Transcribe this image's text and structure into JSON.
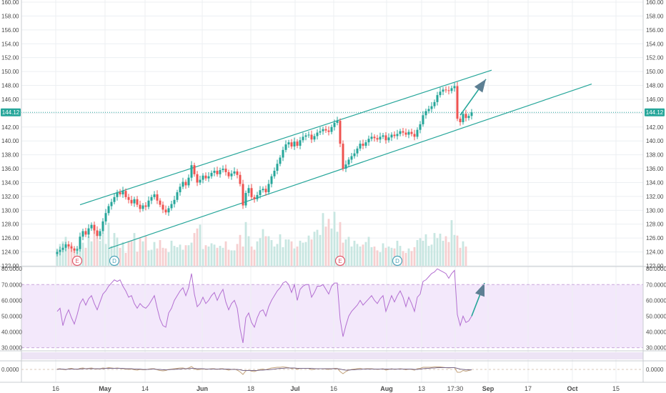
{
  "chart_data": {
    "type": "candlestick",
    "x_tick_labels": [
      "16",
      "May",
      "14",
      "Jun",
      "18",
      "Jul",
      "16",
      "Aug",
      "13",
      "17:30",
      "Sep",
      "17",
      "Oct",
      "15"
    ],
    "price_axis": {
      "ticks": [
        "160.00",
        "158.00",
        "156.00",
        "154.00",
        "152.00",
        "150.00",
        "148.00",
        "146.00",
        "144.00",
        "142.00",
        "140.00",
        "138.00",
        "136.00",
        "134.00",
        "132.00",
        "130.00",
        "128.00",
        "126.00",
        "124.00",
        "122.00"
      ],
      "range": [
        122,
        160
      ],
      "last_price": "144.12",
      "last_price_value": 144.12
    },
    "colors": {
      "up": "#26a69a",
      "down": "#ef5350",
      "channel": "#26a69a",
      "arrow": "#5d7f93",
      "rsi_line": "#b36fd1",
      "rsi_band": "#f3e8fb"
    },
    "events": [
      {
        "label": "E",
        "type": "earnings",
        "day": 7
      },
      {
        "label": "D",
        "type": "dividend",
        "day": 20
      },
      {
        "label": "E",
        "type": "earnings",
        "day": 99
      },
      {
        "label": "D",
        "type": "dividend",
        "day": 119
      }
    ],
    "channel": {
      "upper": [
        [
          8,
          130.8
        ],
        [
          152,
          150.2
        ]
      ],
      "lower": [
        [
          18,
          124.5
        ],
        [
          187,
          148.2
        ]
      ]
    },
    "arrow": {
      "from": [
        141,
        143.7
      ],
      "to": [
        150,
        148.9
      ]
    },
    "price_series": [
      124.0,
      124.3,
      124.6,
      125.1,
      124.8,
      124.5,
      124.2,
      124.4,
      126.2,
      127.0,
      126.5,
      127.4,
      127.9,
      127.1,
      126.3,
      127.0,
      128.4,
      129.6,
      130.6,
      131.2,
      131.9,
      132.6,
      132.3,
      132.8,
      131.9,
      131.5,
      131.0,
      131.6,
      130.8,
      130.2,
      130.7,
      130.5,
      131.4,
      131.9,
      132.3,
      131.4,
      130.8,
      130.1,
      129.7,
      130.3,
      130.9,
      131.5,
      132.6,
      133.4,
      134.1,
      133.6,
      134.7,
      136.5,
      135.2,
      134.0,
      134.4,
      135.0,
      134.6,
      134.9,
      135.4,
      135.7,
      135.2,
      135.8,
      136.0,
      135.5,
      134.9,
      135.3,
      135.6,
      135.1,
      133.8,
      130.7,
      132.5,
      133.2,
      131.9,
      131.6,
      132.2,
      132.9,
      133.1,
      132.6,
      133.8,
      134.9,
      135.7,
      136.7,
      137.6,
      138.7,
      139.5,
      139.8,
      139.2,
      139.9,
      139.3,
      140.1,
      140.6,
      140.8,
      140.9,
      140.2,
      140.7,
      141.2,
      141.4,
      141.7,
      141.5,
      141.3,
      142.0,
      142.6,
      142.9,
      139.6,
      136.0,
      136.6,
      137.3,
      137.8,
      138.2,
      138.9,
      139.6,
      139.3,
      139.8,
      140.3,
      140.6,
      140.4,
      140.2,
      140.6,
      140.8,
      140.1,
      140.5,
      140.9,
      140.7,
      141.0,
      141.4,
      141.2,
      140.9,
      141.3,
      141.0,
      140.6,
      141.6,
      142.4,
      143.7,
      144.3,
      144.6,
      145.0,
      145.6,
      146.6,
      147.1,
      147.4,
      147.3,
      147.2,
      147.6,
      147.9,
      143.2,
      142.7,
      143.9,
      143.3,
      143.6,
      144.12
    ],
    "volume": {
      "levels": [
        0.27,
        0.34,
        0.38,
        0.45,
        0.32,
        0.33,
        0.26,
        0.28,
        0.25,
        0.36,
        0.28,
        0.46,
        0.38,
        0.56,
        0.43,
        0.39,
        0.51,
        0.34,
        0.67,
        0.31,
        0.51,
        0.44,
        0.28,
        0.37,
        0.2,
        0.38,
        0.39,
        0.51,
        0.22,
        0.44,
        0.38,
        0.46,
        0.24,
        0.25,
        0.37,
        0.27,
        0.4,
        0.28,
        0.27,
        0.21,
        0.39,
        0.31,
        0.29,
        0.33,
        0.25,
        0.32,
        0.32,
        0.36,
        0.51,
        0.58,
        0.64,
        0.26,
        0.32,
        0.3,
        0.35,
        0.33,
        0.28,
        0.31,
        0.28,
        0.38,
        0.25,
        0.24,
        0.24,
        0.34,
        0.48,
        0.3,
        0.68,
        0.46,
        0.3,
        0.25,
        0.38,
        0.43,
        0.57,
        0.46,
        0.46,
        0.4,
        0.3,
        0.34,
        0.49,
        0.29,
        0.41,
        0.41,
        0.38,
        0.27,
        0.3,
        0.39,
        0.36,
        0.37,
        0.47,
        0.41,
        0.53,
        0.56,
        0.48,
        0.82,
        0.61,
        0.73,
        0.58,
        0.84,
        0.53,
        0.68,
        0.36,
        0.41,
        0.45,
        0.3,
        0.39,
        0.34,
        0.3,
        0.33,
        0.37,
        0.45,
        0.29,
        0.3,
        0.24,
        0.21,
        0.35,
        0.28,
        0.3,
        0.28,
        0.27,
        0.39,
        0.31,
        0.23,
        0.2,
        0.27,
        0.23,
        0.29,
        0.4,
        0.43,
        0.39,
        0.49,
        0.31,
        0.33,
        0.51,
        0.43,
        0.5,
        0.39,
        0.46,
        0.37,
        0.71,
        0.48,
        0.47,
        0.28,
        0.38,
        0.3
      ]
    },
    "rsi": {
      "ticks": [
        "80.0000",
        "70.0000",
        "60.0000",
        "50.0000",
        "40.0000",
        "30.0000"
      ],
      "range": [
        28,
        81
      ],
      "band": [
        30,
        70
      ],
      "series": [
        53,
        55,
        44,
        50,
        54,
        49,
        45,
        51,
        58,
        61,
        57,
        61,
        63,
        58,
        54,
        59,
        64,
        66,
        69,
        71,
        73,
        72,
        73,
        69,
        66,
        62,
        63,
        58,
        55,
        58,
        56,
        55,
        57,
        60,
        63,
        55,
        48,
        44,
        43,
        52,
        55,
        60,
        63,
        66,
        68,
        63,
        68,
        77,
        64,
        56,
        58,
        62,
        58,
        60,
        63,
        65,
        60,
        64,
        67,
        59,
        54,
        58,
        60,
        55,
        42,
        33,
        49,
        52,
        46,
        43,
        49,
        53,
        54,
        50,
        56,
        60,
        63,
        66,
        68,
        71,
        72,
        70,
        65,
        70,
        60,
        67,
        69,
        70,
        70,
        62,
        65,
        69,
        69,
        70,
        67,
        64,
        69,
        71,
        71,
        48,
        37,
        44,
        50,
        53,
        55,
        57,
        60,
        57,
        59,
        61,
        63,
        60,
        58,
        61,
        63,
        53,
        58,
        63,
        59,
        63,
        66,
        62,
        56,
        62,
        58,
        53,
        62,
        64,
        72,
        73,
        75,
        77,
        78,
        80,
        79,
        78,
        77,
        74,
        77,
        79,
        51,
        44,
        50,
        46,
        47,
        50
      ]
    },
    "lower_pane": {
      "ticks": [
        "0.0000"
      ],
      "series_a": [
        0.1,
        0.2,
        0.0,
        -0.1,
        0.2,
        0.3,
        0.1,
        0.0,
        0.3,
        0.4,
        0.2,
        0.3,
        0.4,
        0.2,
        0.1,
        0.2,
        0.4,
        0.3,
        0.5,
        0.4,
        0.3,
        0.4,
        0.3,
        0.2,
        0.1,
        0.0,
        0.1,
        -0.1,
        -0.2,
        0.0,
        -0.1,
        -0.1,
        0.1,
        0.2,
        0.2,
        -0.1,
        -0.3,
        -0.4,
        -0.3,
        0.0,
        0.1,
        0.2,
        0.3,
        0.4,
        0.4,
        0.2,
        0.4,
        0.8,
        0.2,
        -0.1,
        0.0,
        0.2,
        0.0,
        0.1,
        0.2,
        0.2,
        0.0,
        0.2,
        0.2,
        0.0,
        -0.2,
        0.0,
        0.1,
        -0.2,
        -0.7,
        -1.4,
        -0.4,
        -0.2,
        -0.5,
        -0.6,
        -0.3,
        0.0,
        0.1,
        -0.1,
        0.2,
        0.4,
        0.5,
        0.6,
        0.6,
        0.7,
        0.6,
        0.5,
        0.2,
        0.4,
        0.0,
        0.3,
        0.3,
        0.3,
        0.3,
        -0.1,
        0.1,
        0.2,
        0.2,
        0.2,
        0.1,
        0.0,
        0.2,
        0.3,
        0.3,
        -0.6,
        -1.2,
        -0.6,
        -0.2,
        0.0,
        0.1,
        0.2,
        0.3,
        0.1,
        0.2,
        0.2,
        0.2,
        0.1,
        0.0,
        0.1,
        0.2,
        -0.2,
        0.0,
        0.2,
        0.0,
        0.1,
        0.2,
        0.1,
        -0.1,
        0.1,
        0.0,
        -0.2,
        0.2,
        0.3,
        0.6,
        0.6,
        0.6,
        0.6,
        0.7,
        0.7,
        0.7,
        0.6,
        0.5,
        0.4,
        0.5,
        0.5,
        -0.8,
        -0.8,
        -0.3,
        -0.5,
        -0.3,
        -0.1
      ],
      "series_b": [
        0.0,
        0.1,
        0.1,
        0.0,
        0.1,
        0.1,
        0.1,
        0.1,
        0.1,
        0.2,
        0.2,
        0.2,
        0.2,
        0.2,
        0.2,
        0.2,
        0.2,
        0.3,
        0.3,
        0.3,
        0.3,
        0.3,
        0.3,
        0.3,
        0.2,
        0.2,
        0.2,
        0.1,
        0.1,
        0.1,
        0.0,
        0.0,
        0.0,
        0.1,
        0.1,
        0.0,
        0.0,
        -0.1,
        -0.1,
        -0.1,
        0.0,
        0.0,
        0.1,
        0.1,
        0.2,
        0.2,
        0.2,
        0.3,
        0.3,
        0.2,
        0.2,
        0.2,
        0.1,
        0.1,
        0.1,
        0.1,
        0.1,
        0.1,
        0.1,
        0.1,
        0.1,
        0.0,
        0.0,
        0.0,
        -0.1,
        -0.3,
        -0.3,
        -0.3,
        -0.3,
        -0.3,
        -0.3,
        -0.2,
        -0.2,
        -0.1,
        -0.1,
        0.0,
        0.1,
        0.2,
        0.3,
        0.3,
        0.4,
        0.4,
        0.4,
        0.4,
        0.3,
        0.3,
        0.3,
        0.3,
        0.3,
        0.3,
        0.2,
        0.2,
        0.2,
        0.2,
        0.2,
        0.2,
        0.2,
        0.2,
        0.2,
        0.1,
        -0.1,
        -0.2,
        -0.2,
        -0.1,
        -0.1,
        0.0,
        0.0,
        0.1,
        0.1,
        0.1,
        0.1,
        0.1,
        0.1,
        0.1,
        0.1,
        0.1,
        0.1,
        0.1,
        0.1,
        0.1,
        0.1,
        0.1,
        0.1,
        0.1,
        0.1,
        0.0,
        0.0,
        0.1,
        0.2,
        0.3,
        0.3,
        0.4,
        0.4,
        0.5,
        0.5,
        0.5,
        0.5,
        0.5,
        0.5,
        0.5,
        0.3,
        0.1,
        0.0,
        -0.1,
        -0.1,
        -0.1
      ]
    }
  }
}
